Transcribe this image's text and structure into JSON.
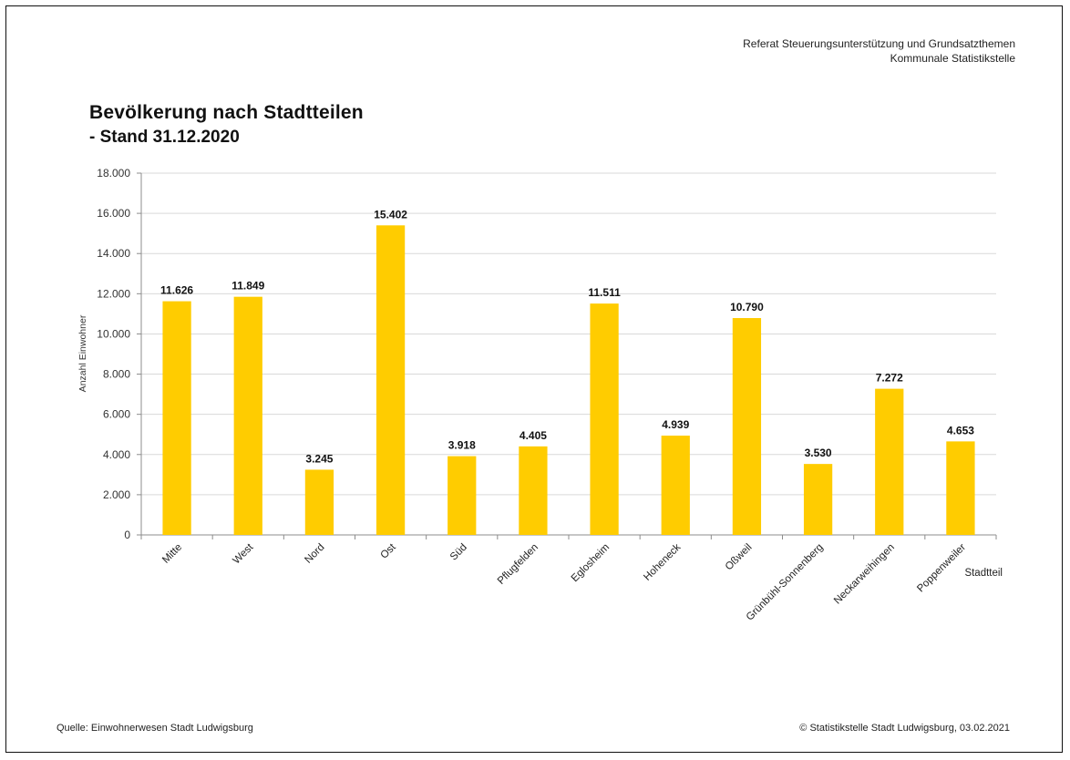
{
  "header": {
    "org_line1": "Referat Steuerungsunterstützung und Grundsatzthemen",
    "org_line2": "Kommunale Statistikstelle"
  },
  "footer": {
    "source": "Quelle: Einwohnerwesen Stadt Ludwigsburg",
    "copyright": "© Statistikstelle Stadt Ludwigsburg, 03.02.2021"
  },
  "chart_data": {
    "type": "bar",
    "title": "Bevölkerung nach Stadtteilen",
    "subtitle": "- Stand 31.12.2020",
    "xlabel": "Stadtteil",
    "ylabel": "Anzahl Einwohner",
    "categories": [
      "Mitte",
      "West",
      "Nord",
      "Ost",
      "Süd",
      "Pflugfelden",
      "Eglosheim",
      "Hoheneck",
      "Oßweil",
      "Grünbühl-Sonnenberg",
      "Neckarweihingen",
      "Poppenweiler"
    ],
    "values": [
      11626,
      11849,
      3245,
      15402,
      3918,
      4405,
      11511,
      4939,
      10790,
      3530,
      7272,
      4653
    ],
    "data_labels": [
      "11.626",
      "11.849",
      "3.245",
      "15.402",
      "3.918",
      "4.405",
      "11.511",
      "4.939",
      "10.790",
      "3.530",
      "7.272",
      "4.653"
    ],
    "ylim": [
      0,
      18000
    ],
    "yticks": [
      0,
      2000,
      4000,
      6000,
      8000,
      10000,
      12000,
      14000,
      16000,
      18000
    ],
    "ytick_labels": [
      "0",
      "2.000",
      "4.000",
      "6.000",
      "8.000",
      "10.000",
      "12.000",
      "14.000",
      "16.000",
      "18.000"
    ],
    "grid": true,
    "bar_color": "#FFCC00",
    "grid_color": "#d9d9d9",
    "axis_color": "#8c8c8c"
  }
}
